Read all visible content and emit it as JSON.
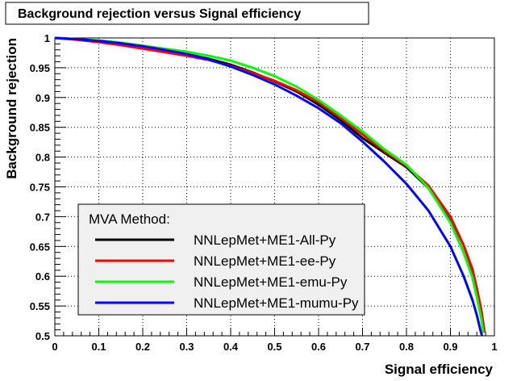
{
  "chart_data": {
    "type": "line",
    "title": "Background rejection versus Signal efficiency",
    "xlabel": "Signal efficiency",
    "ylabel": "Background rejection",
    "xlim": [
      0,
      1
    ],
    "ylim": [
      0.5,
      1
    ],
    "xticks": [
      "0",
      "0.1",
      "0.2",
      "0.3",
      "0.4",
      "0.5",
      "0.6",
      "0.7",
      "0.8",
      "0.9",
      "1"
    ],
    "yticks": [
      "0.5",
      "0.55",
      "0.6",
      "0.65",
      "0.7",
      "0.75",
      "0.8",
      "0.85",
      "0.9",
      "0.95",
      "1"
    ],
    "grid": true,
    "legend": {
      "title": "MVA Method:",
      "position": "bottom-left"
    },
    "series": [
      {
        "name": "NNLepMet+ME1-All-Py",
        "color": "#000000",
        "points": [
          [
            0,
            1
          ],
          [
            0.05,
            0.998
          ],
          [
            0.1,
            0.995
          ],
          [
            0.15,
            0.991
          ],
          [
            0.2,
            0.986
          ],
          [
            0.25,
            0.98
          ],
          [
            0.3,
            0.973
          ],
          [
            0.35,
            0.965
          ],
          [
            0.4,
            0.955
          ],
          [
            0.45,
            0.942
          ],
          [
            0.5,
            0.927
          ],
          [
            0.55,
            0.91
          ],
          [
            0.6,
            0.888
          ],
          [
            0.65,
            0.862
          ],
          [
            0.7,
            0.832
          ],
          [
            0.75,
            0.807
          ],
          [
            0.8,
            0.783
          ],
          [
            0.85,
            0.748
          ],
          [
            0.9,
            0.692
          ],
          [
            0.93,
            0.64
          ],
          [
            0.95,
            0.6
          ],
          [
            0.96,
            0.567
          ],
          [
            0.97,
            0.535
          ],
          [
            0.975,
            0.505
          ]
        ]
      },
      {
        "name": "NNLepMet+ME1-ee-Py",
        "color": "#ff0000",
        "points": [
          [
            0,
            1
          ],
          [
            0.05,
            0.997
          ],
          [
            0.1,
            0.993
          ],
          [
            0.15,
            0.988
          ],
          [
            0.2,
            0.982
          ],
          [
            0.25,
            0.976
          ],
          [
            0.3,
            0.97
          ],
          [
            0.35,
            0.963
          ],
          [
            0.4,
            0.953
          ],
          [
            0.45,
            0.941
          ],
          [
            0.5,
            0.928
          ],
          [
            0.55,
            0.912
          ],
          [
            0.6,
            0.892
          ],
          [
            0.65,
            0.866
          ],
          [
            0.7,
            0.838
          ],
          [
            0.75,
            0.81
          ],
          [
            0.8,
            0.785
          ],
          [
            0.85,
            0.752
          ],
          [
            0.9,
            0.7
          ],
          [
            0.93,
            0.652
          ],
          [
            0.95,
            0.612
          ],
          [
            0.96,
            0.58
          ],
          [
            0.97,
            0.545
          ],
          [
            0.978,
            0.505
          ]
        ]
      },
      {
        "name": "NNLepMet+ME1-emu-Py",
        "color": "#00ff00",
        "points": [
          [
            0,
            1
          ],
          [
            0.05,
            0.998
          ],
          [
            0.1,
            0.996
          ],
          [
            0.15,
            0.992
          ],
          [
            0.2,
            0.987
          ],
          [
            0.25,
            0.982
          ],
          [
            0.3,
            0.977
          ],
          [
            0.35,
            0.97
          ],
          [
            0.4,
            0.962
          ],
          [
            0.45,
            0.95
          ],
          [
            0.5,
            0.936
          ],
          [
            0.55,
            0.918
          ],
          [
            0.6,
            0.896
          ],
          [
            0.65,
            0.87
          ],
          [
            0.7,
            0.843
          ],
          [
            0.75,
            0.813
          ],
          [
            0.8,
            0.787
          ],
          [
            0.85,
            0.748
          ],
          [
            0.9,
            0.69
          ],
          [
            0.93,
            0.64
          ],
          [
            0.95,
            0.598
          ],
          [
            0.96,
            0.565
          ],
          [
            0.97,
            0.53
          ],
          [
            0.975,
            0.505
          ]
        ]
      },
      {
        "name": "NNLepMet+ME1-mumu-Py",
        "color": "#0000ff",
        "points": [
          [
            0,
            1
          ],
          [
            0.05,
            0.998
          ],
          [
            0.1,
            0.995
          ],
          [
            0.15,
            0.991
          ],
          [
            0.2,
            0.986
          ],
          [
            0.25,
            0.98
          ],
          [
            0.3,
            0.973
          ],
          [
            0.35,
            0.964
          ],
          [
            0.4,
            0.952
          ],
          [
            0.45,
            0.938
          ],
          [
            0.5,
            0.922
          ],
          [
            0.55,
            0.903
          ],
          [
            0.6,
            0.882
          ],
          [
            0.65,
            0.857
          ],
          [
            0.7,
            0.826
          ],
          [
            0.75,
            0.792
          ],
          [
            0.8,
            0.755
          ],
          [
            0.85,
            0.71
          ],
          [
            0.9,
            0.65
          ],
          [
            0.93,
            0.6
          ],
          [
            0.95,
            0.56
          ],
          [
            0.96,
            0.535
          ],
          [
            0.968,
            0.51
          ],
          [
            0.972,
            0.5
          ]
        ]
      }
    ]
  }
}
